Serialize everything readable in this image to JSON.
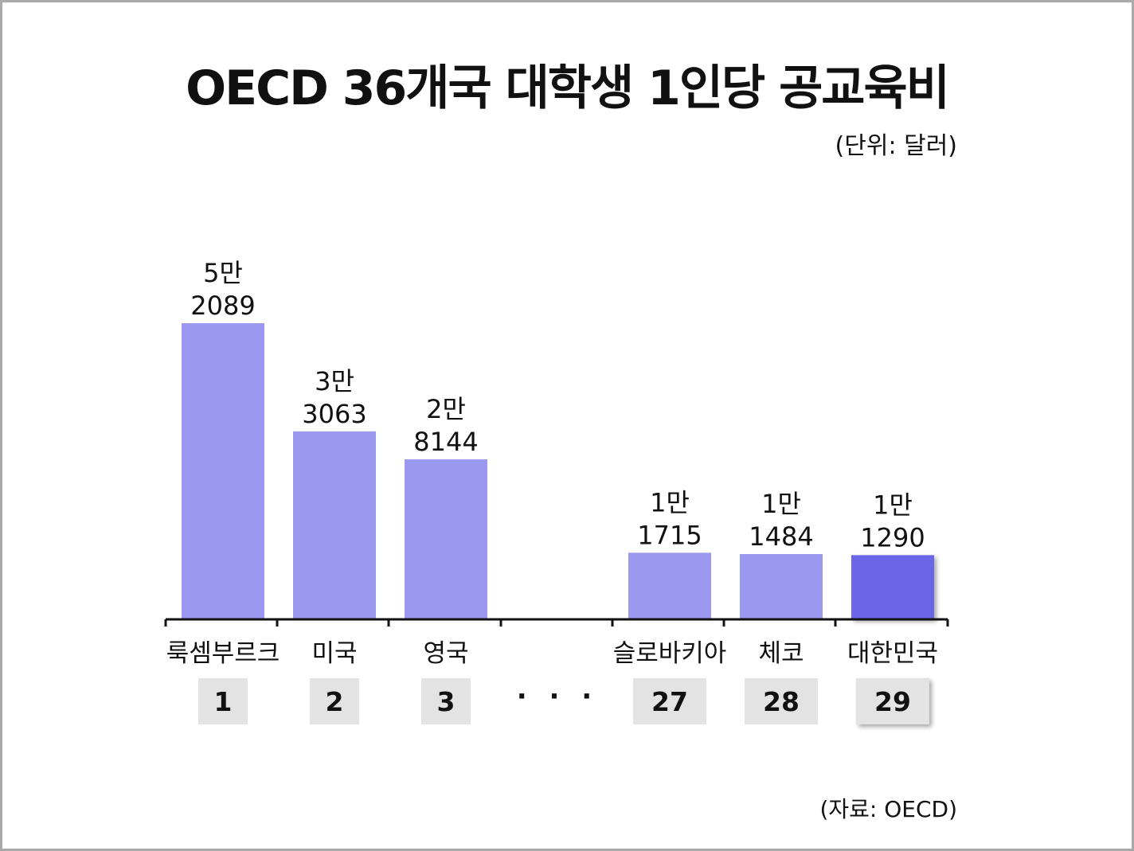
{
  "title": "OECD 36개국 대학생 1인당 공교육비",
  "unit": "(단위: 달러)",
  "source": "(자료: OECD)",
  "ellipsis": "· · ·",
  "colors": {
    "bar": "#9b98f0",
    "highlight": "#6a66e6",
    "rank_box": "#e3e3e3",
    "axis": "#111111"
  },
  "chart_data": {
    "type": "bar",
    "title": "OECD 36개국 대학생 1인당 공교육비",
    "unit": "(단위: 달러)",
    "categories": [
      "룩셈부르크",
      "미국",
      "영국",
      "슬로바키아",
      "체코",
      "대한민국"
    ],
    "ranks": [
      "1",
      "2",
      "3",
      "27",
      "28",
      "29"
    ],
    "values": [
      52089,
      33063,
      28144,
      11715,
      11484,
      11290
    ],
    "value_labels": [
      [
        "5만",
        "2089"
      ],
      [
        "3만",
        "3063"
      ],
      [
        "2만",
        "8144"
      ],
      [
        "1만",
        "1715"
      ],
      [
        "1만",
        "1484"
      ],
      [
        "1만",
        "1290"
      ]
    ],
    "gap_after_index": 2,
    "highlight_index": 5,
    "ylim": [
      0,
      52089
    ],
    "grid": false
  }
}
